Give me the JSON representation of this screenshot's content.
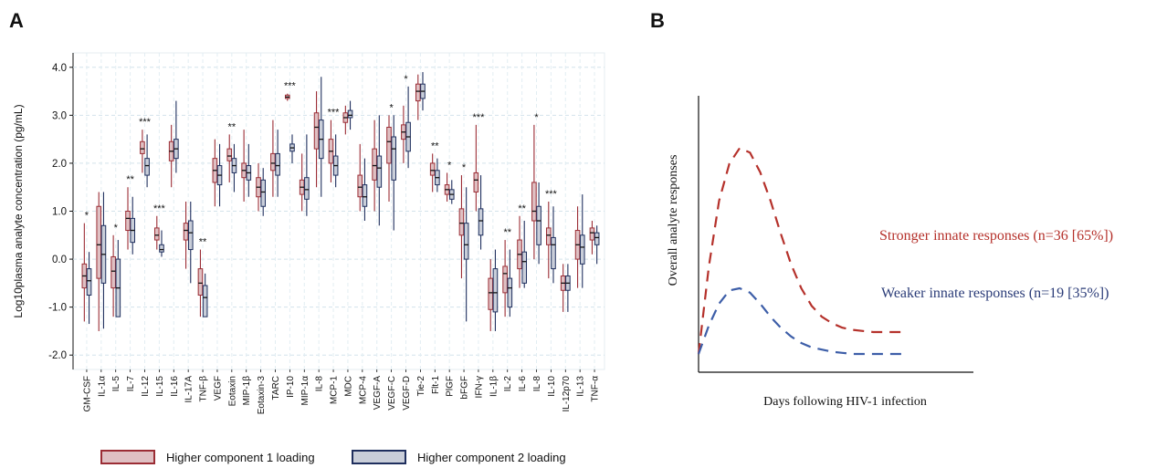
{
  "chart_data": [
    {
      "panel": "A",
      "type": "box",
      "ylabel": "Log10plasma analyte concentration (pg/mL)",
      "yticks": [
        "4.0",
        "3.0",
        "2.0",
        "1.0",
        "0.0",
        "-1.0",
        "-2.0"
      ],
      "ylim": [
        -2.3,
        4.3
      ],
      "grid": true,
      "legend": {
        "placement": "bottom",
        "items": [
          {
            "label": "Higher component 1 loading",
            "fill": "#dfc0c3",
            "stroke": "#9b2d35"
          },
          {
            "label": "Higher component 2 loading",
            "fill": "#c9ced9",
            "stroke": "#1f2f5e"
          }
        ]
      },
      "categories": [
        "GM-CSF",
        "IL-1α",
        "IL-5",
        "IL-7",
        "IL-12",
        "IL-15",
        "IL-16",
        "IL-17A",
        "TNF-β",
        "VEGF",
        "Eotaxin",
        "MIP-1β",
        "Eotaxin-3",
        "TARC",
        "IP-10",
        "MIP-1α",
        "IL-8",
        "MCP-1",
        "MDC",
        "MCP-4",
        "VEGF-A",
        "VEGF-C",
        "VEGF-D",
        "Tie-2",
        "Flt-1",
        "PlGF",
        "bFGF",
        "IFN-γ",
        "IL-1β",
        "IL-2",
        "IL-6",
        "IL-8",
        "IL-10",
        "IL-12p70",
        "IL-13",
        "TNF-α"
      ],
      "significance": [
        "*",
        "",
        "*",
        "**",
        "***",
        "***",
        "",
        "",
        "**",
        "",
        "**",
        "",
        "",
        "",
        "***",
        "",
        "",
        "***",
        "",
        "",
        "",
        "*",
        "*",
        "",
        "**",
        "*",
        "*",
        "***",
        "",
        "**",
        "**",
        "*",
        "***",
        "",
        "",
        ""
      ],
      "series": [
        {
          "name": "Higher component 1 loading",
          "color": "#9b2d35",
          "fill": "#dfc0c3",
          "boxes": [
            [
              -1.3,
              -0.6,
              -0.35,
              -0.1,
              0.75
            ],
            [
              -1.5,
              -0.4,
              0.3,
              1.1,
              1.4
            ],
            [
              -1.2,
              -0.6,
              -0.25,
              0.05,
              0.5
            ],
            [
              0.2,
              0.6,
              0.85,
              1.0,
              1.5
            ],
            [
              1.8,
              2.2,
              2.3,
              2.45,
              2.7
            ],
            [
              0.2,
              0.4,
              0.5,
              0.65,
              0.9
            ],
            [
              1.5,
              2.05,
              2.25,
              2.45,
              2.8
            ],
            [
              -0.2,
              0.4,
              0.6,
              0.75,
              1.2
            ],
            [
              -1.2,
              -0.75,
              -0.5,
              -0.2,
              0.2
            ],
            [
              1.1,
              1.6,
              1.85,
              2.1,
              2.5
            ],
            [
              1.6,
              2.05,
              2.15,
              2.3,
              2.6
            ],
            [
              1.2,
              1.7,
              1.85,
              2.0,
              2.7
            ],
            [
              1.0,
              1.3,
              1.5,
              1.7,
              2.0
            ],
            [
              1.3,
              1.85,
              2.0,
              2.2,
              2.9
            ],
            [
              3.3,
              3.35,
              3.38,
              3.42,
              3.45
            ],
            [
              1.0,
              1.35,
              1.5,
              1.65,
              2.2
            ],
            [
              1.5,
              2.3,
              2.75,
              3.05,
              3.5
            ],
            [
              1.6,
              2.0,
              2.25,
              2.5,
              2.9
            ],
            [
              2.6,
              2.85,
              2.95,
              3.05,
              3.2
            ],
            [
              1.0,
              1.3,
              1.5,
              1.75,
              2.4
            ],
            [
              1.0,
              1.65,
              1.95,
              2.3,
              2.9
            ],
            [
              1.2,
              2.0,
              2.45,
              2.75,
              3.0
            ],
            [
              2.0,
              2.5,
              2.65,
              2.8,
              3.2
            ],
            [
              2.9,
              3.3,
              3.5,
              3.65,
              3.85
            ],
            [
              1.4,
              1.75,
              1.85,
              2.0,
              2.2
            ],
            [
              1.2,
              1.35,
              1.45,
              1.55,
              1.8
            ],
            [
              -0.4,
              0.5,
              0.75,
              1.05,
              1.75
            ],
            [
              1.0,
              1.4,
              1.65,
              1.8,
              2.8
            ],
            [
              -1.5,
              -1.05,
              -0.7,
              -0.4,
              0.0
            ],
            [
              -1.2,
              -0.7,
              -0.3,
              -0.15,
              0.4
            ],
            [
              -0.6,
              -0.2,
              0.1,
              0.4,
              0.9
            ],
            [
              0.0,
              0.8,
              1.0,
              1.6,
              2.8
            ],
            [
              -0.4,
              0.3,
              0.5,
              0.65,
              1.2
            ],
            [
              -1.1,
              -0.65,
              -0.5,
              -0.35,
              -0.1
            ],
            [
              -0.6,
              0.0,
              0.3,
              0.6,
              1.1
            ],
            [
              0.1,
              0.4,
              0.55,
              0.65,
              0.8
            ]
          ]
        },
        {
          "name": "Higher component 2 loading",
          "color": "#1f2f5e",
          "fill": "#c9ced9",
          "boxes": [
            [
              -1.35,
              -0.75,
              -0.45,
              -0.2,
              0.15
            ],
            [
              -1.45,
              -0.5,
              0.1,
              0.7,
              1.4
            ],
            [
              -1.2,
              -1.2,
              -0.6,
              0.0,
              0.4
            ],
            [
              0.1,
              0.35,
              0.6,
              0.85,
              1.3
            ],
            [
              1.5,
              1.75,
              1.95,
              2.1,
              2.6
            ],
            [
              0.05,
              0.15,
              0.2,
              0.3,
              0.6
            ],
            [
              1.8,
              2.1,
              2.3,
              2.5,
              3.3
            ],
            [
              -0.5,
              0.2,
              0.55,
              0.8,
              1.2
            ],
            [
              -1.2,
              -1.2,
              -0.8,
              -0.55,
              -0.3
            ],
            [
              1.1,
              1.55,
              1.75,
              1.95,
              2.4
            ],
            [
              1.4,
              1.8,
              1.95,
              2.1,
              2.4
            ],
            [
              1.3,
              1.65,
              1.8,
              1.95,
              2.4
            ],
            [
              0.9,
              1.1,
              1.4,
              1.65,
              1.9
            ],
            [
              1.3,
              1.75,
              1.95,
              2.2,
              2.7
            ],
            [
              2.0,
              2.25,
              2.32,
              2.4,
              2.6
            ],
            [
              0.9,
              1.25,
              1.45,
              1.7,
              2.6
            ],
            [
              1.3,
              2.1,
              2.5,
              2.9,
              3.8
            ],
            [
              1.5,
              1.75,
              1.95,
              2.15,
              2.6
            ],
            [
              2.7,
              2.95,
              3.0,
              3.1,
              3.3
            ],
            [
              0.8,
              1.1,
              1.3,
              1.55,
              2.1
            ],
            [
              0.7,
              1.5,
              1.9,
              2.15,
              3.0
            ],
            [
              0.6,
              1.65,
              2.3,
              2.55,
              3.0
            ],
            [
              1.9,
              2.25,
              2.55,
              2.85,
              3.6
            ],
            [
              3.1,
              3.35,
              3.5,
              3.65,
              3.9
            ],
            [
              1.4,
              1.55,
              1.7,
              1.85,
              2.1
            ],
            [
              1.15,
              1.25,
              1.35,
              1.45,
              1.65
            ],
            [
              -1.3,
              0.0,
              0.3,
              0.75,
              1.5
            ],
            [
              0.2,
              0.5,
              0.8,
              1.05,
              1.75
            ],
            [
              -1.5,
              -1.1,
              -0.7,
              -0.2,
              0.2
            ],
            [
              -1.2,
              -1.0,
              -0.6,
              -0.4,
              0.2
            ],
            [
              -0.6,
              -0.5,
              -0.05,
              0.15,
              0.8
            ],
            [
              -0.1,
              0.3,
              0.8,
              1.1,
              1.6
            ],
            [
              -0.5,
              -0.2,
              0.3,
              0.45,
              1.1
            ],
            [
              -1.1,
              -0.65,
              -0.5,
              -0.35,
              -0.1
            ],
            [
              -0.6,
              -0.1,
              0.25,
              0.5,
              1.35
            ],
            [
              -0.1,
              0.3,
              0.45,
              0.55,
              0.7
            ]
          ]
        }
      ]
    },
    {
      "panel": "B",
      "type": "line",
      "xlabel": "Days following HIV-1 infection",
      "ylabel": "Overall analyte responses",
      "series": [
        {
          "name": "Stronger innate responses (n=36 [65%])",
          "color": "#b5312b",
          "style": "dashed",
          "x": [
            0,
            5,
            10,
            15,
            20,
            25,
            30,
            35,
            40,
            45,
            50,
            55,
            60,
            65,
            70,
            75,
            80,
            85,
            90,
            95,
            100
          ],
          "y": [
            0.05,
            0.45,
            0.75,
            0.92,
            0.99,
            0.97,
            0.88,
            0.75,
            0.6,
            0.46,
            0.35,
            0.27,
            0.22,
            0.19,
            0.17,
            0.16,
            0.155,
            0.15,
            0.15,
            0.15,
            0.15
          ]
        },
        {
          "name": "Weaker innate responses (n=19 [35%])",
          "color": "#3d5ea8",
          "style": "dashed",
          "x": [
            0,
            5,
            10,
            15,
            20,
            25,
            30,
            35,
            40,
            45,
            50,
            55,
            60,
            65,
            70,
            75,
            80,
            85,
            90,
            95,
            100
          ],
          "y": [
            0.05,
            0.18,
            0.28,
            0.34,
            0.35,
            0.33,
            0.28,
            0.22,
            0.17,
            0.13,
            0.1,
            0.08,
            0.07,
            0.06,
            0.055,
            0.05,
            0.05,
            0.05,
            0.05,
            0.05,
            0.05
          ]
        }
      ]
    }
  ],
  "panel_letters": {
    "a": "A",
    "b": "B"
  }
}
